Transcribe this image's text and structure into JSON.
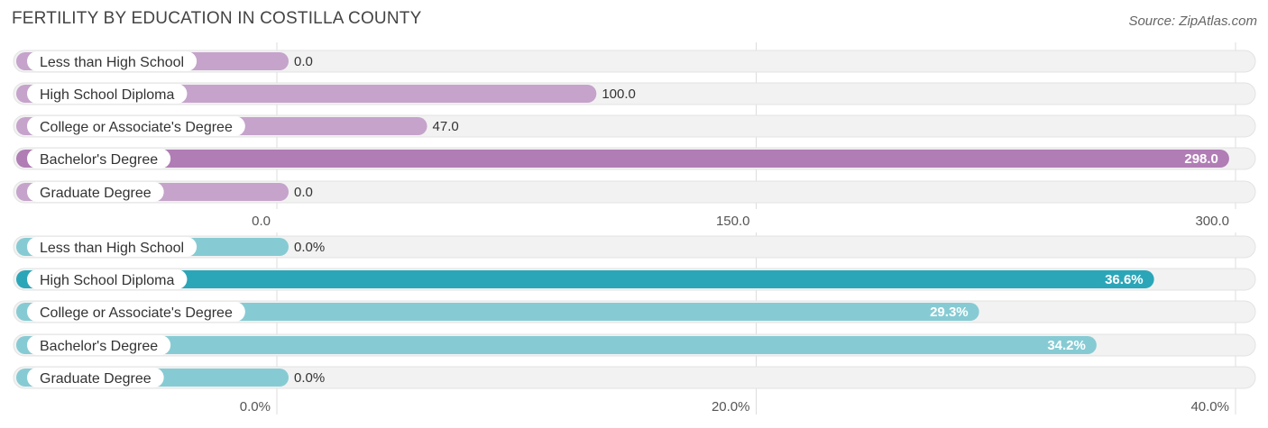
{
  "header": {
    "title": "FERTILITY BY EDUCATION IN COSTILLA COUNTY",
    "source": "Source: ZipAtlas.com"
  },
  "chart_data": [
    {
      "type": "bar",
      "orientation": "horizontal",
      "name": "count-chart",
      "categories": [
        "Less than High School",
        "High School Diploma",
        "College or Associate's Degree",
        "Bachelor's Degree",
        "Graduate Degree"
      ],
      "values": [
        0.0,
        100.0,
        47.0,
        298.0,
        0.0
      ],
      "value_labels": [
        "0.0",
        "100.0",
        "47.0",
        "298.0",
        "0.0"
      ],
      "xlim": [
        0,
        300
      ],
      "ticks": [
        0,
        150,
        300
      ],
      "tick_labels": [
        "0.0",
        "150.0",
        "300.0"
      ],
      "colors": {
        "bar": "#c5a3cb",
        "bar_max": "#b07db5"
      }
    },
    {
      "type": "bar",
      "orientation": "horizontal",
      "name": "percent-chart",
      "categories": [
        "Less than High School",
        "High School Diploma",
        "College or Associate's Degree",
        "Bachelor's Degree",
        "Graduate Degree"
      ],
      "values": [
        0.0,
        36.6,
        29.3,
        34.2,
        0.0
      ],
      "value_labels": [
        "0.0%",
        "36.6%",
        "29.3%",
        "34.2%",
        "0.0%"
      ],
      "xlim": [
        0,
        40
      ],
      "ticks": [
        0,
        20,
        40
      ],
      "tick_labels": [
        "0.0%",
        "20.0%",
        "40.0%"
      ],
      "colors": {
        "bar": "#86cbd3",
        "bar_max": "#2ba6b8"
      }
    }
  ]
}
